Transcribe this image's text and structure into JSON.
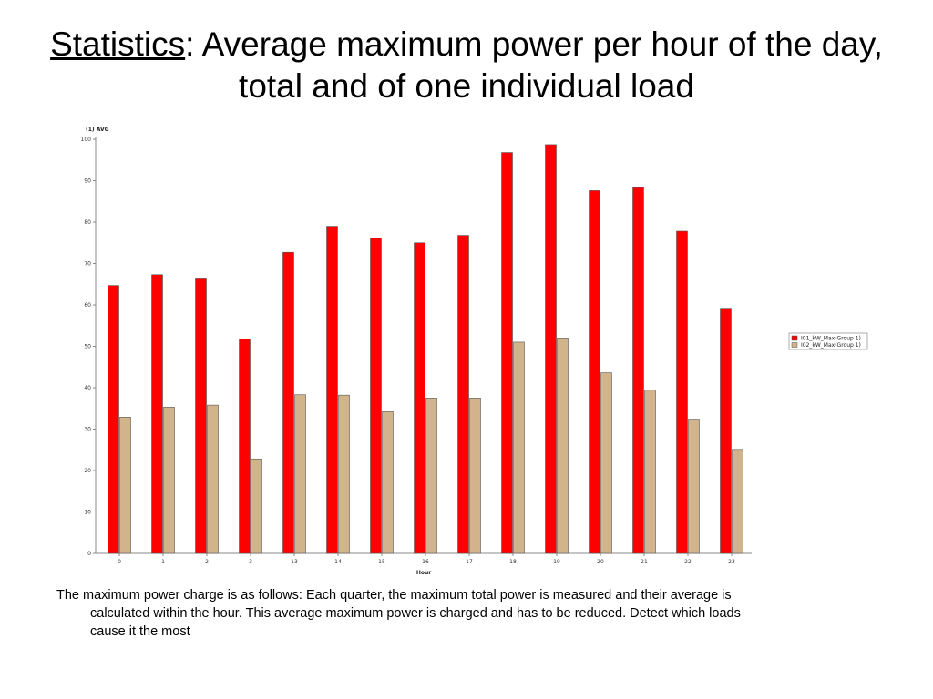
{
  "slide": {
    "title_underlined": "Statistics",
    "title_rest": ": Average maximum power per hour of the day, total and of one individual load",
    "caption_line1": "The maximum power charge is as follows: Each quarter, the maximum total power is measured and their average is",
    "caption_line2": "calculated within the hour. This average maximum power is charged and has to be reduced. Detect which loads",
    "caption_line3": "cause it the most"
  },
  "chart_data": {
    "type": "bar",
    "title": "",
    "ylabel": "(1) AVG",
    "xlabel": "Hour",
    "categories": [
      "0",
      "1",
      "2",
      "3",
      "13",
      "14",
      "15",
      "16",
      "17",
      "18",
      "19",
      "20",
      "21",
      "22",
      "23"
    ],
    "series": [
      {
        "name": "I01_kW_Max(Group 1)",
        "color": "#ff0000",
        "values": [
          64.7,
          67.3,
          66.5,
          51.7,
          72.7,
          79.0,
          76.2,
          75.0,
          76.8,
          96.8,
          98.7,
          87.6,
          88.3,
          77.8,
          59.2
        ]
      },
      {
        "name": "I02_kW_Max(Group 1)",
        "color": "#d2b48c",
        "values": [
          32.9,
          35.3,
          35.8,
          22.8,
          38.3,
          38.2,
          34.2,
          37.5,
          37.5,
          51.0,
          52.0,
          43.6,
          39.4,
          32.4,
          25.1
        ]
      }
    ],
    "yticks": [
      0,
      10,
      20,
      30,
      40,
      50,
      60,
      70,
      80,
      90,
      100
    ],
    "ylim": [
      0,
      100
    ],
    "grid": false,
    "legend": "right"
  }
}
